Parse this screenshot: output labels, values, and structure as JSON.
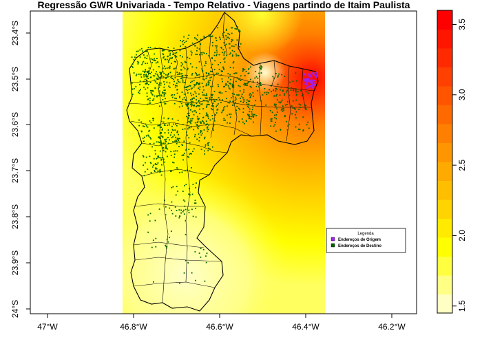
{
  "title": "Regressão GWR Univariada - Tempo Relativo - Viagens partindo de Itaim Paulista",
  "x_ticks": [
    "47°W",
    "46.8°W",
    "46.6°W",
    "46.4°W",
    "46.2°W"
  ],
  "y_ticks": [
    "23.4°S",
    "23.5°S",
    "23.6°S",
    "23.7°S",
    "23.8°S",
    "23.9°S",
    "24°S"
  ],
  "colorbar": {
    "ticks": [
      "1.5",
      "2.0",
      "2.5",
      "3.0",
      "3.5"
    ],
    "min": 1.45,
    "max": 3.6,
    "colors": [
      "#ffffc4",
      "#ffff85",
      "#ffff40",
      "#ffff00",
      "#ffea00",
      "#ffd400",
      "#ffbf00",
      "#ffaa00",
      "#ff9500",
      "#ff8000",
      "#ff6a00",
      "#ff5500",
      "#ff4000",
      "#ff2a00",
      "#ff1500",
      "#ff0000"
    ]
  },
  "legend": {
    "title": "Legenda",
    "items": [
      {
        "label": "Endereços de Origem",
        "color": "#a020f0"
      },
      {
        "label": "Endereços de Destino",
        "color": "#006400"
      }
    ]
  }
}
